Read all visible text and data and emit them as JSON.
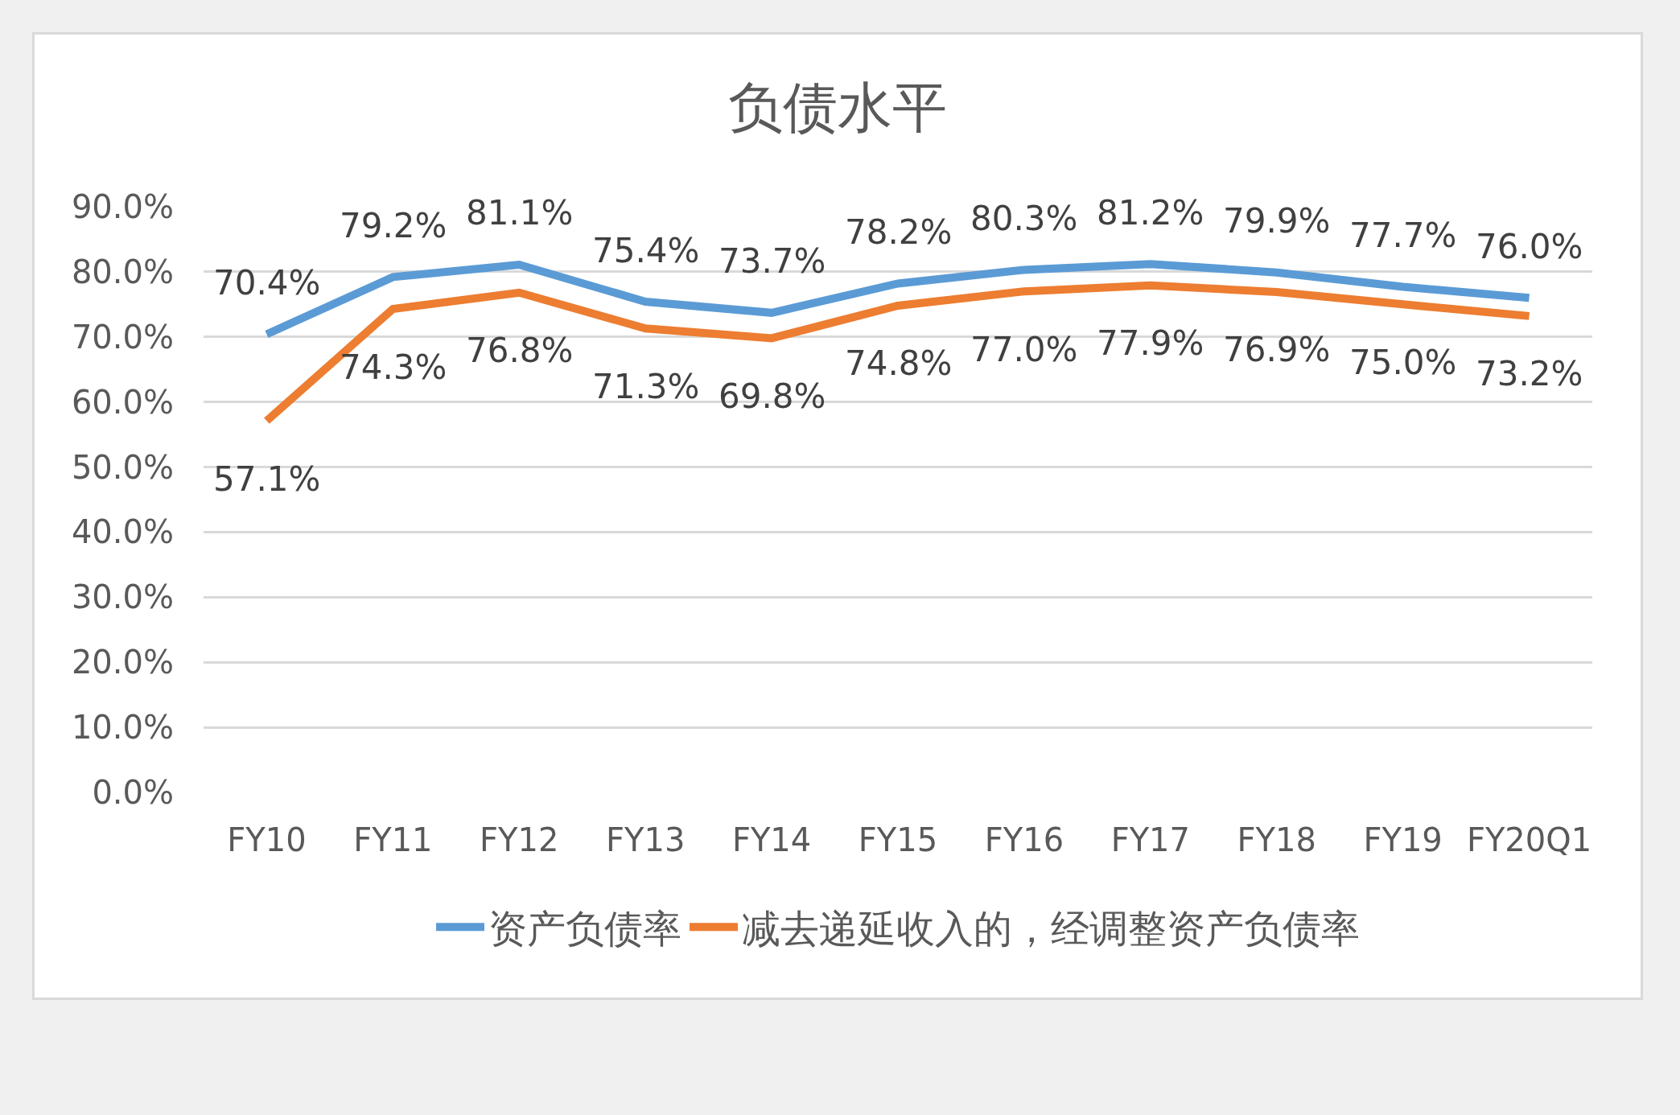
{
  "chart_data": {
    "type": "line",
    "title": "负债水平",
    "categories": [
      "FY10",
      "FY11",
      "FY12",
      "FY13",
      "FY14",
      "FY15",
      "FY16",
      "FY17",
      "FY18",
      "FY19",
      "FY20Q1"
    ],
    "series": [
      {
        "name": "资产负债率",
        "color": "#5b9bd5",
        "values": [
          70.4,
          79.2,
          81.1,
          75.4,
          73.7,
          78.2,
          80.3,
          81.2,
          79.9,
          77.7,
          76.0
        ],
        "value_labels": [
          "70.4%",
          "79.2%",
          "81.1%",
          "75.4%",
          "73.7%",
          "78.2%",
          "80.3%",
          "81.2%",
          "79.9%",
          "77.7%",
          "76.0%"
        ]
      },
      {
        "name": "减去递延收入的，经调整资产负债率",
        "color": "#ed7d31",
        "values": [
          57.1,
          74.3,
          76.8,
          71.3,
          69.8,
          74.8,
          77.0,
          77.9,
          76.9,
          75.0,
          73.2
        ],
        "value_labels": [
          "57.1%",
          "74.3%",
          "76.8%",
          "71.3%",
          "69.8%",
          "74.8%",
          "77.0%",
          "77.9%",
          "76.9%",
          "75.0%",
          "73.2%"
        ]
      }
    ],
    "ylim": [
      0,
      90
    ],
    "yticks": [
      {
        "value": 0,
        "label": "0.0%"
      },
      {
        "value": 10,
        "label": "10.0%"
      },
      {
        "value": 20,
        "label": "20.0%"
      },
      {
        "value": 30,
        "label": "30.0%"
      },
      {
        "value": 40,
        "label": "40.0%"
      },
      {
        "value": 50,
        "label": "50.0%"
      },
      {
        "value": 60,
        "label": "60.0%"
      },
      {
        "value": 70,
        "label": "70.0%"
      },
      {
        "value": 80,
        "label": "80.0%"
      },
      {
        "value": 90,
        "label": "90.0%"
      }
    ],
    "grid": "y",
    "legend": "bottom",
    "line_style": "solid"
  }
}
